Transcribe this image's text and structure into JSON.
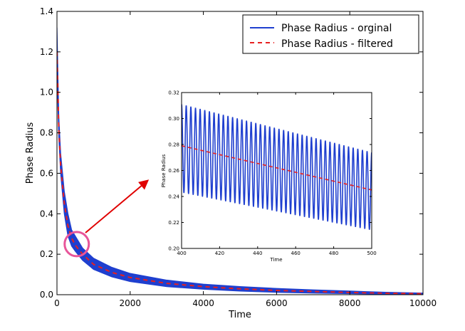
{
  "chart_data": [
    {
      "type": "line",
      "role": "main",
      "title": "",
      "xlabel": "Time",
      "ylabel": "Phase Radius",
      "xlim": [
        0,
        10000
      ],
      "ylim": [
        0,
        1.4
      ],
      "xticks": [
        0,
        2000,
        4000,
        6000,
        8000,
        10000
      ],
      "xtick_labels": [
        "0",
        "2000",
        "4000",
        "6000",
        "8000",
        "10000"
      ],
      "yticks": [
        0.0,
        0.2,
        0.4,
        0.6,
        0.8,
        1.0,
        1.2,
        1.4
      ],
      "ytick_labels": [
        "0.0",
        "0.2",
        "0.4",
        "0.6",
        "0.8",
        "1.0",
        "1.2",
        "1.4"
      ],
      "legend_position": "top-right",
      "series": [
        {
          "name": "Phase Radius - orginal",
          "style": "solid",
          "color": "#1f3fcf",
          "x": [
            0,
            50,
            100,
            200,
            300,
            400,
            500,
            700,
            1000,
            1500,
            2000,
            3000,
            4000,
            5000,
            6000,
            7000,
            8000,
            9000,
            10000
          ],
          "y_upper": [
            1.32,
            0.88,
            0.7,
            0.51,
            0.4,
            0.32,
            0.29,
            0.23,
            0.18,
            0.135,
            0.105,
            0.072,
            0.052,
            0.04,
            0.031,
            0.024,
            0.018,
            0.012,
            0.008
          ],
          "y_lower": [
            1.1,
            0.78,
            0.6,
            0.4,
            0.29,
            0.24,
            0.215,
            0.17,
            0.125,
            0.088,
            0.065,
            0.04,
            0.027,
            0.018,
            0.012,
            0.008,
            0.005,
            0.003,
            0.002
          ]
        },
        {
          "name": "Phase Radius - filtered",
          "style": "dashed",
          "color": "#e62020",
          "x": [
            0,
            50,
            100,
            200,
            300,
            400,
            500,
            700,
            1000,
            1500,
            2000,
            3000,
            4000,
            5000,
            6000,
            7000,
            8000,
            9000,
            10000
          ],
          "y": [
            1.2,
            0.82,
            0.64,
            0.45,
            0.34,
            0.28,
            0.245,
            0.2,
            0.15,
            0.11,
            0.085,
            0.056,
            0.04,
            0.029,
            0.021,
            0.016,
            0.011,
            0.007,
            0.005
          ]
        }
      ],
      "annotation": {
        "type": "circle-with-arrow",
        "center": [
          540,
          0.25
        ],
        "color": "#e8559a",
        "arrow_color": "#e00000",
        "points_to": "inset"
      }
    },
    {
      "type": "line",
      "role": "inset",
      "title": "",
      "xlabel": "Time",
      "ylabel": "Phase Radius",
      "xlim": [
        400,
        500
      ],
      "ylim": [
        0.2,
        0.32
      ],
      "xticks": [
        400,
        420,
        440,
        460,
        480,
        500
      ],
      "xtick_labels": [
        "400",
        "420",
        "440",
        "460",
        "480",
        "500"
      ],
      "yticks": [
        0.2,
        0.22,
        0.24,
        0.26,
        0.28,
        0.3,
        0.32
      ],
      "ytick_labels": [
        "0.20",
        "0.22",
        "0.24",
        "0.26",
        "0.28",
        "0.30",
        "0.32"
      ],
      "series": [
        {
          "name": "Phase Radius - orginal",
          "style": "solid",
          "color": "#1f3fcf",
          "oscillation": {
            "cycles": 41,
            "upper_start": 0.311,
            "upper_end": 0.274,
            "lower_start": 0.243,
            "lower_end": 0.214
          }
        },
        {
          "name": "Phase Radius - filtered",
          "style": "dashed",
          "color": "#e62020",
          "x": [
            400,
            500
          ],
          "y": [
            0.279,
            0.245
          ]
        }
      ]
    }
  ]
}
